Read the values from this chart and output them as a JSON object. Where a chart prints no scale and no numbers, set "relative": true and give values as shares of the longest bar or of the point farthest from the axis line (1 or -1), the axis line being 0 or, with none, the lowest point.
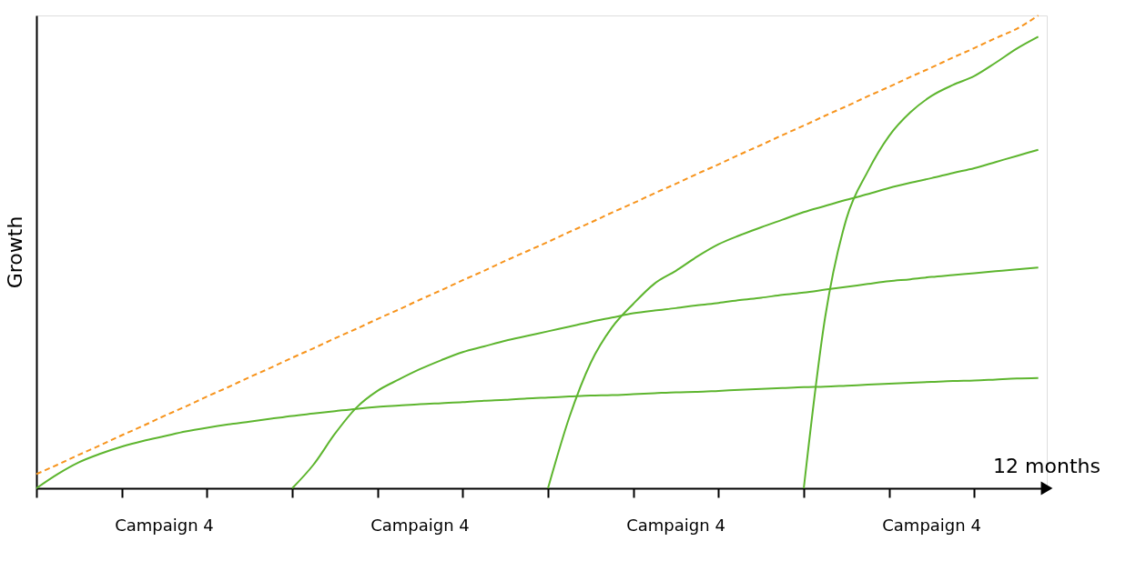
{
  "chart_data": {
    "type": "line",
    "relative": true,
    "xlabel": "12 months",
    "ylabel": "Growth",
    "grid": false,
    "marker": "none",
    "categories": [
      null,
      null,
      null,
      null,
      null,
      null,
      "Campaign 4",
      null,
      null,
      null,
      null,
      null,
      null,
      null,
      null,
      null,
      null,
      null,
      "Campaign 4",
      null,
      null,
      null,
      null,
      null,
      null,
      null,
      null,
      null,
      null,
      null,
      "Campaign 4",
      null,
      null,
      null,
      null,
      null,
      null,
      null,
      null,
      null,
      null,
      null,
      "Campaign 4",
      null,
      null,
      null,
      null,
      null
    ],
    "series": [
      {
        "color": "#f7941d",
        "line_style": "dashed",
        "values": [
          0.03,
          0.05,
          0.071,
          0.091,
          0.112,
          0.132,
          0.153,
          0.173,
          0.194,
          0.214,
          0.235,
          0.255,
          0.276,
          0.296,
          0.317,
          0.337,
          0.358,
          0.378,
          0.399,
          0.419,
          0.44,
          0.46,
          0.481,
          0.501,
          0.521,
          0.542,
          0.562,
          0.583,
          0.603,
          0.624,
          0.644,
          0.665,
          0.685,
          0.706,
          0.726,
          0.747,
          0.767,
          0.788,
          0.808,
          0.829,
          0.849,
          0.87,
          0.89,
          0.911,
          0.931,
          0.952,
          0.972,
          1
        ]
      },
      {
        "color": "#5db52e",
        "line_style": "solid",
        "values": [
          0,
          0.03,
          0.055,
          0.073,
          0.088,
          0.1,
          0.11,
          0.12,
          0.128,
          0.135,
          0.141,
          0.147,
          0.153,
          0.158,
          0.163,
          0.168,
          0.172,
          0.175,
          0.178,
          0.18,
          0.182,
          0.185,
          0.187,
          0.19,
          0.192,
          0.194,
          0.196,
          0.197,
          0.199,
          0.201,
          0.203,
          0.204,
          0.206,
          0.208,
          0.21,
          0.212,
          0.214,
          0.215,
          0.217,
          0.219,
          0.221,
          0.223,
          0.225,
          0.227,
          0.228,
          0.23,
          0.232,
          0.233
        ]
      },
      {
        "color": "#5db52e",
        "line_style": "solid",
        "values": [
          null,
          null,
          null,
          null,
          null,
          null,
          null,
          null,
          null,
          null,
          null,
          null,
          0,
          0.05,
          0.115,
          0.17,
          0.206,
          0.23,
          0.252,
          0.271,
          0.288,
          0.3,
          0.312,
          0.322,
          0.332,
          0.342,
          0.352,
          0.361,
          0.37,
          0.376,
          0.381,
          0.387,
          0.392,
          0.398,
          0.403,
          0.409,
          0.414,
          0.42,
          0.426,
          0.432,
          0.438,
          0.442,
          0.447,
          0.451,
          0.455,
          0.459,
          0.463,
          0.467
        ]
      },
      {
        "color": "#5db52e",
        "line_style": "solid",
        "values": [
          null,
          null,
          null,
          null,
          null,
          null,
          null,
          null,
          null,
          null,
          null,
          null,
          null,
          null,
          null,
          null,
          null,
          null,
          null,
          null,
          null,
          null,
          null,
          null,
          0,
          0.15,
          0.265,
          0.34,
          0.39,
          0.433,
          0.46,
          0.49,
          0.516,
          0.535,
          0.552,
          0.568,
          0.584,
          0.597,
          0.61,
          0.622,
          0.635,
          0.646,
          0.656,
          0.667,
          0.677,
          0.69,
          0.703,
          0.716
        ]
      },
      {
        "color": "#5db52e",
        "line_style": "solid",
        "values": [
          null,
          null,
          null,
          null,
          null,
          null,
          null,
          null,
          null,
          null,
          null,
          null,
          null,
          null,
          null,
          null,
          null,
          null,
          null,
          null,
          null,
          null,
          null,
          null,
          null,
          null,
          null,
          null,
          null,
          null,
          null,
          null,
          null,
          null,
          null,
          null,
          0,
          0.361,
          0.57,
          0.67,
          0.745,
          0.795,
          0.83,
          0.853,
          0.872,
          0.9,
          0.93,
          0.955
        ]
      }
    ]
  }
}
